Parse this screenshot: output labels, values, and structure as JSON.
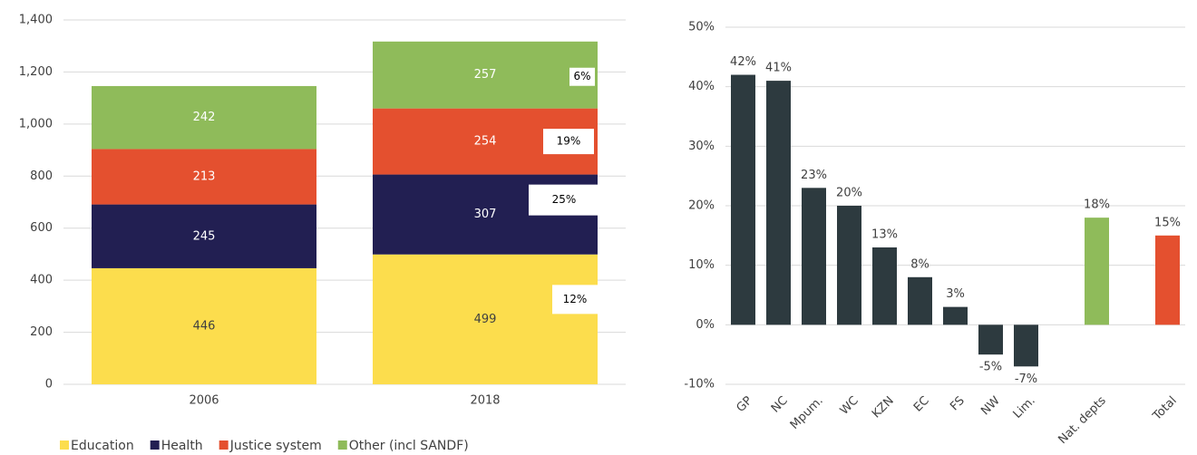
{
  "chart_data": [
    {
      "type": "stacked-bar",
      "categories": [
        "2006",
        "2018"
      ],
      "series": [
        {
          "name": "Education",
          "color": "#fcdd4d",
          "values": [
            446,
            499
          ]
        },
        {
          "name": "Health",
          "color": "#221f52",
          "values": [
            245,
            307
          ]
        },
        {
          "name": "Justice system",
          "color": "#e4502f",
          "values": [
            213,
            254
          ]
        },
        {
          "name": "Other (incl SANDF)",
          "color": "#8fbb5a",
          "values": [
            242,
            257
          ]
        }
      ],
      "annotations": [
        "12%",
        "25%",
        "19%",
        "6%"
      ],
      "ylim": [
        0,
        1400
      ],
      "yticks": [
        0,
        200,
        400,
        600,
        800,
        {
          "value": 1000,
          "label": "1,000"
        },
        {
          "value": 1200,
          "label": "1,200"
        },
        {
          "value": 1400,
          "label": "1,400"
        }
      ],
      "grid": true,
      "legend": "bottom"
    },
    {
      "type": "bar",
      "categories": [
        "GP",
        "NC",
        "Mpum.",
        "WC",
        "KZN",
        "EC",
        "FS",
        "NW",
        "Lim.",
        null,
        "Nat. depts",
        null,
        "Total"
      ],
      "values": [
        42,
        41,
        23,
        20,
        13,
        8,
        3,
        -5,
        -7,
        null,
        18,
        null,
        15
      ],
      "value_labels": [
        "42%",
        "41%",
        "23%",
        "20%",
        "13%",
        "8%",
        "3%",
        "-5%",
        "-7%",
        null,
        "18%",
        null,
        "15%"
      ],
      "colors": [
        "#2d3a3f",
        "#2d3a3f",
        "#2d3a3f",
        "#2d3a3f",
        "#2d3a3f",
        "#2d3a3f",
        "#2d3a3f",
        "#2d3a3f",
        "#2d3a3f",
        null,
        "#8fbb5a",
        null,
        "#e4502f"
      ],
      "ylim": [
        -10,
        50
      ],
      "yticks": [
        {
          "value": -10,
          "label": "-10%"
        },
        {
          "value": 0,
          "label": "0%"
        },
        {
          "value": 10,
          "label": "10%"
        },
        {
          "value": 20,
          "label": "20%"
        },
        {
          "value": 30,
          "label": "30%"
        },
        {
          "value": 40,
          "label": "40%"
        },
        {
          "value": 50,
          "label": "50%"
        }
      ],
      "grid": true
    }
  ]
}
